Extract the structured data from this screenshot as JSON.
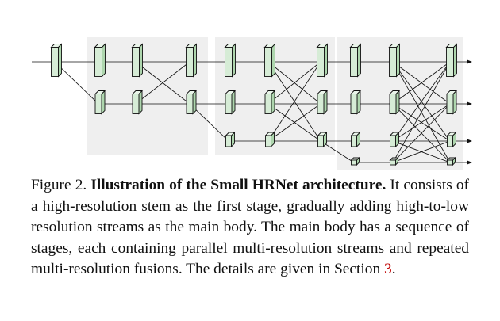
{
  "caption": {
    "label": "Figure 2.",
    "title": "Illustration of the Small HRNet architecture.",
    "body": " It consists of a high-resolution stem as the first stage, gradually adding high-to-low resolution streams as the main body. The main body has a sequence of stages, each containing parallel multi-resolution streams and repeated multi-resolution fusions.  The details are given in Section ",
    "section_ref": "3",
    "end": "."
  },
  "diagram": {
    "streams": 4,
    "stages": [
      {
        "number": 1,
        "streams": 1
      },
      {
        "number": 2,
        "streams": 2
      },
      {
        "number": 3,
        "streams": 3
      },
      {
        "number": 4,
        "streams": 4
      }
    ],
    "colors": {
      "block_front": "#d6ecd6",
      "block_side": "#aed6ae",
      "block_top": "#eaf5ea",
      "stage_background": "#efefef",
      "line": "#111111"
    }
  }
}
